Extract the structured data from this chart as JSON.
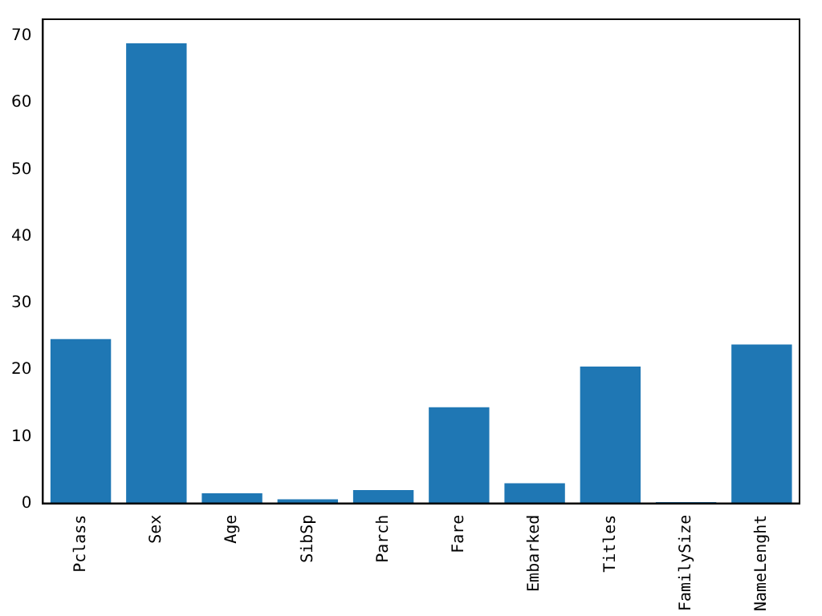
{
  "chart_data": {
    "type": "bar",
    "categories": [
      "Pclass",
      "Sex",
      "Age",
      "SibSp",
      "Parch",
      "Fare",
      "Embarked",
      "Titles",
      "FamilySize",
      "NameLenght"
    ],
    "values": [
      24.6,
      68.9,
      1.5,
      0.6,
      2.0,
      14.4,
      3.0,
      20.5,
      0.2,
      23.8
    ],
    "color": "#1f77b4",
    "ylim": [
      0,
      72.5
    ],
    "yticks": [
      0,
      10,
      20,
      30,
      40,
      50,
      60,
      70
    ],
    "grid": false,
    "legend": false
  }
}
